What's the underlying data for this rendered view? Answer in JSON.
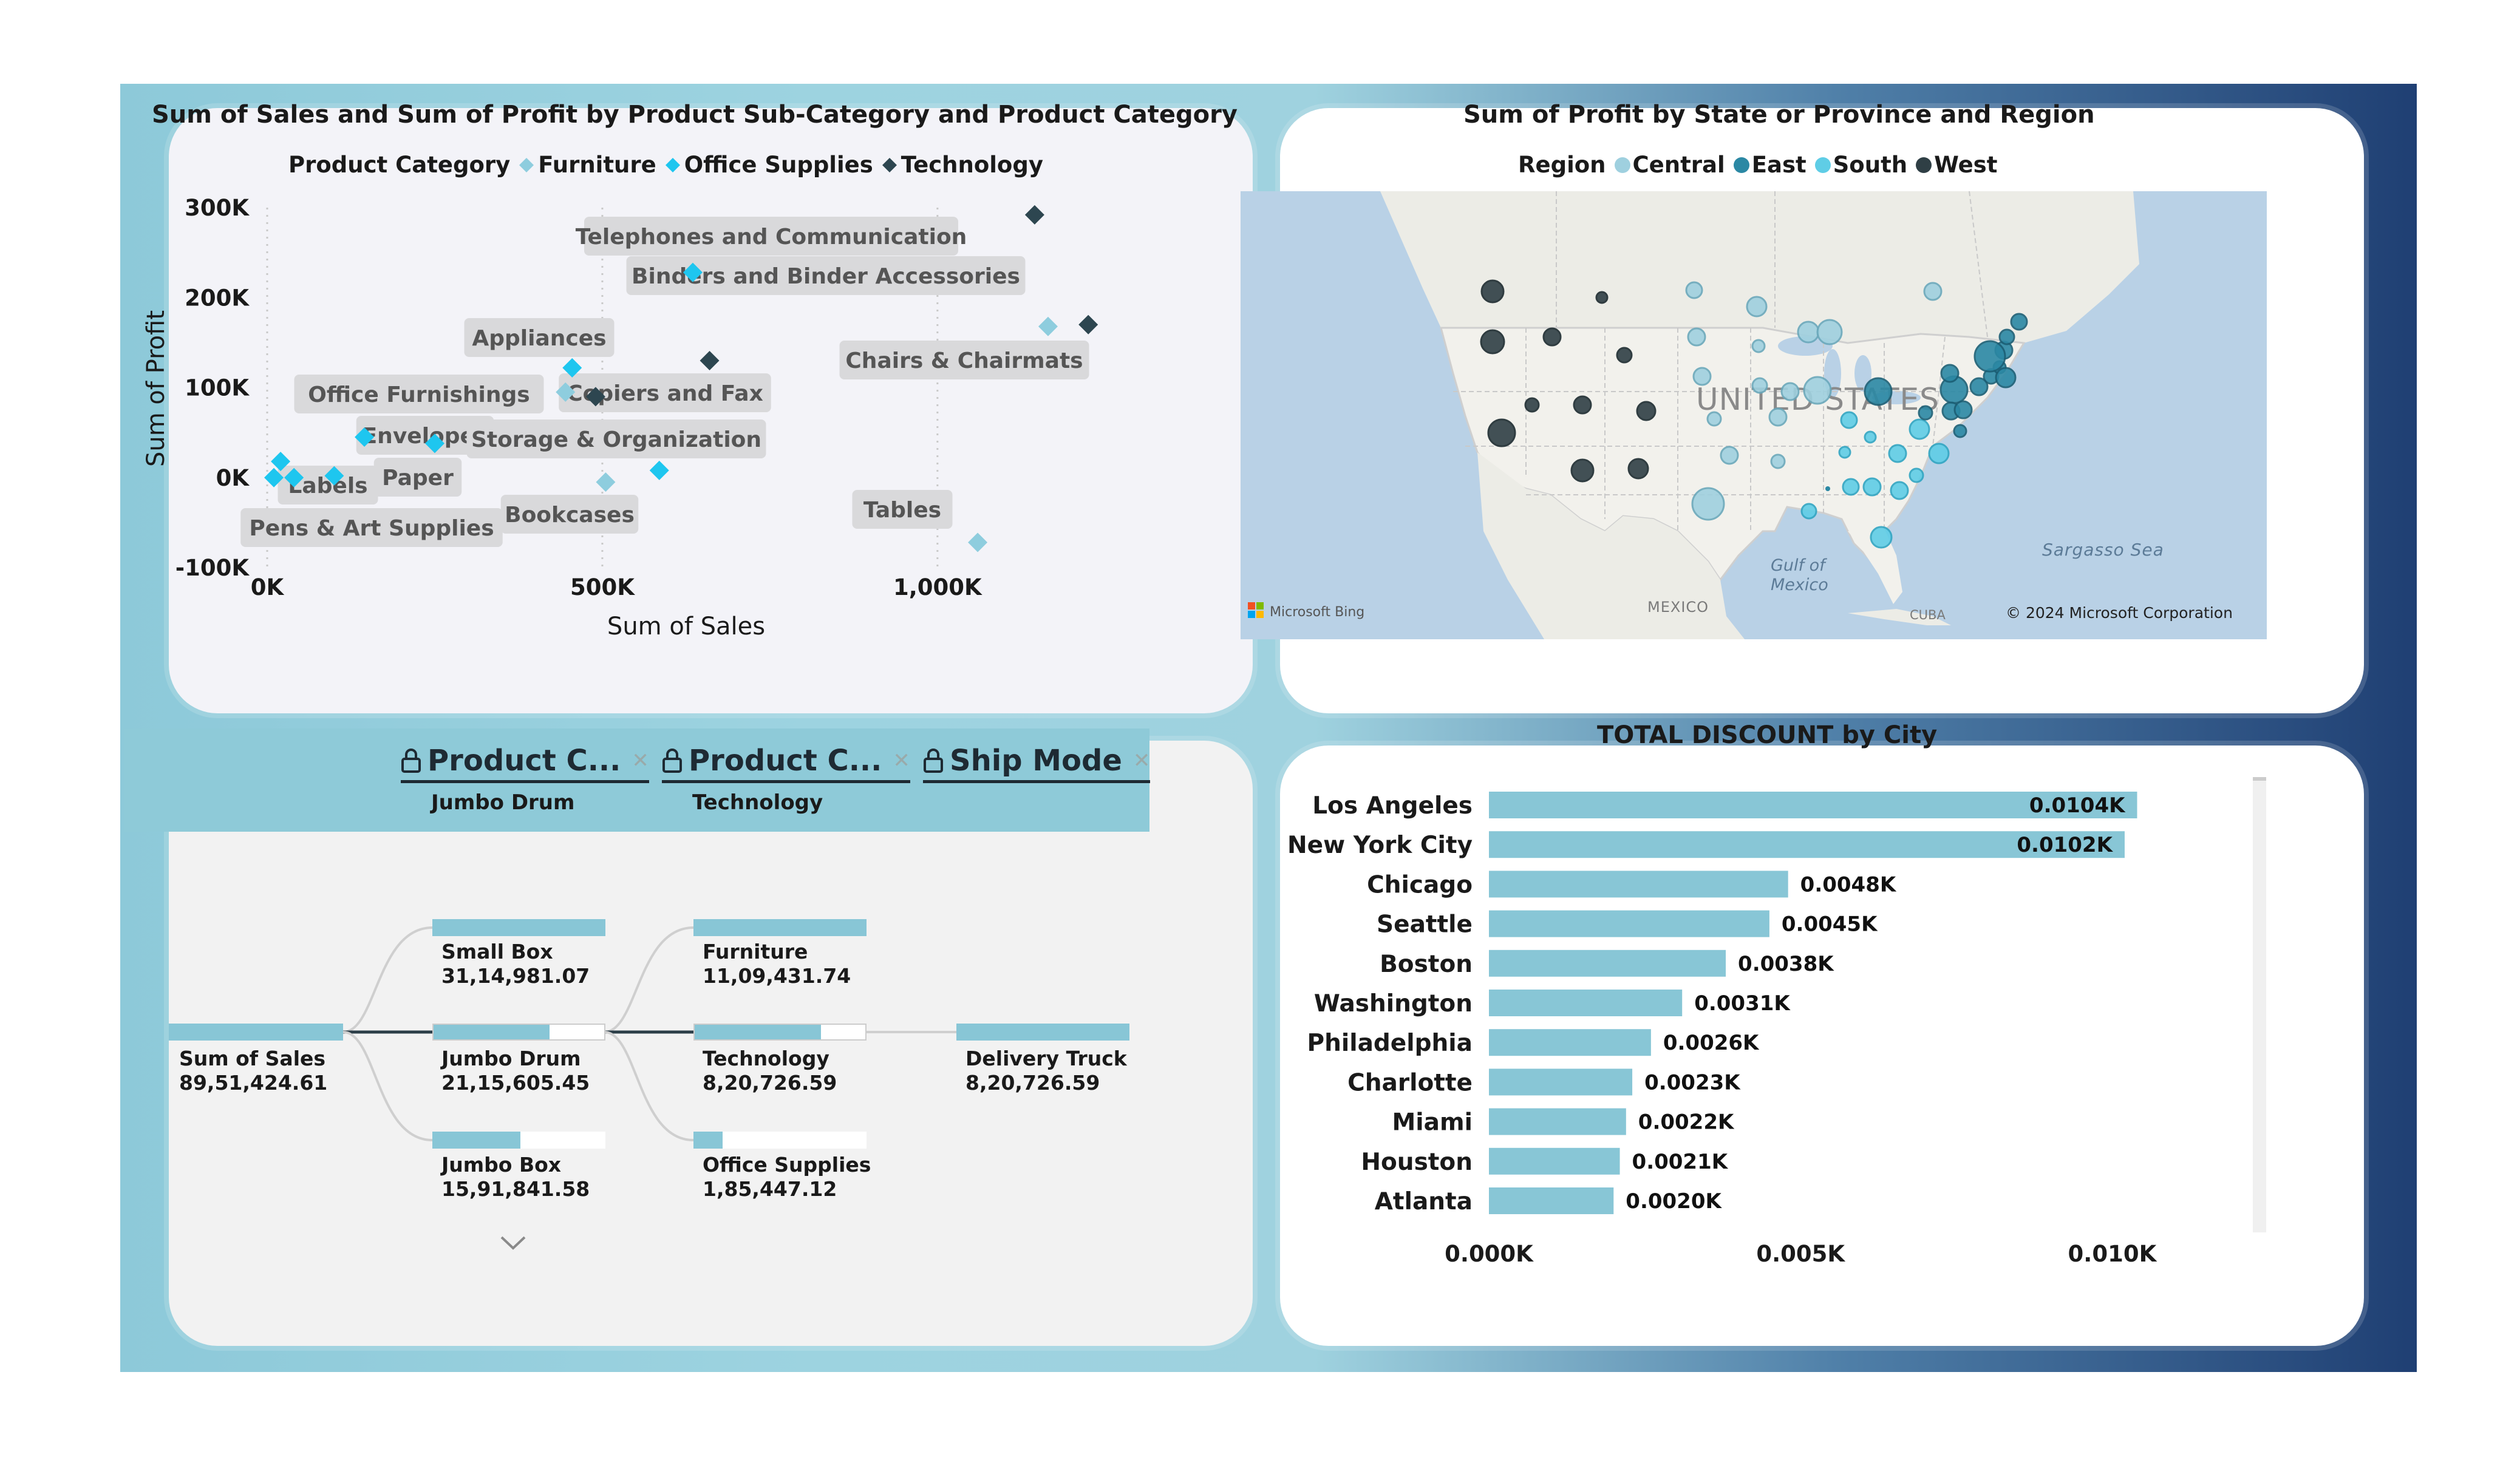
{
  "colors": {
    "furniture": "#8ecdde",
    "office_supplies": "#1ec6ef",
    "technology": "#2d4650",
    "central": "#9fd0df",
    "east": "#2b88a4",
    "south": "#5fcde6",
    "west": "#2f3f45",
    "bar": "#88c6d6"
  },
  "scatter": {
    "title": "Sum of Sales and Sum of Profit by Product Sub-Category and Product Category",
    "legend_title": "Product Category",
    "chart_data": {
      "type": "scatter",
      "xlabel": "Sum of Sales",
      "ylabel": "Sum of Profit",
      "xlim": [
        0,
        1300000
      ],
      "ylim": [
        -100000,
        300000
      ],
      "x_ticks": [
        {
          "v": 0,
          "label": "0K"
        },
        {
          "v": 500000,
          "label": "500K"
        },
        {
          "v": 1000000,
          "label": "1,000K"
        }
      ],
      "y_ticks": [
        {
          "v": 300000,
          "label": "300K"
        },
        {
          "v": 200000,
          "label": "200K"
        },
        {
          "v": 100000,
          "label": "100K"
        },
        {
          "v": 0,
          "label": "0K"
        },
        {
          "v": -100000,
          "label": "-100K"
        }
      ],
      "series": [
        {
          "name": "Furniture",
          "points": [
            {
              "label": "Office Furnishings",
              "x": 445000,
              "y": 95000
            },
            {
              "label": "Bookcases",
              "x": 505000,
              "y": -5000
            },
            {
              "label": "Chairs & Chairmats",
              "x": 1165000,
              "y": 168000
            },
            {
              "label": "Tables",
              "x": 1060000,
              "y": -72000
            }
          ]
        },
        {
          "name": "Office Supplies",
          "points": [
            {
              "label": "Appliances",
              "x": 455000,
              "y": 122000
            },
            {
              "label": "Binders and Binder Accessories",
              "x": 635000,
              "y": 228000
            },
            {
              "label": "Envelopes",
              "x": 145000,
              "y": 45000
            },
            {
              "label": "Storage & Organization",
              "x": 585000,
              "y": 8000
            },
            {
              "label": "Labels",
              "x": 20000,
              "y": 18000
            },
            {
              "label": "Paper",
              "x": 100000,
              "y": 2000
            },
            {
              "label": "Pens & Art Supplies",
              "x": 40000,
              "y": 0
            },
            {
              "label": "",
              "x": 250000,
              "y": 38000
            },
            {
              "label": "",
              "x": 10000,
              "y": 0
            }
          ]
        },
        {
          "name": "Technology",
          "points": [
            {
              "label": "Telephones and Communication",
              "x": 1145000,
              "y": 292000
            },
            {
              "label": "Copiers and Fax",
              "x": 660000,
              "y": 130000
            },
            {
              "label": "",
              "x": 490000,
              "y": 90000
            },
            {
              "label": "",
              "x": 1225000,
              "y": 170000
            }
          ]
        }
      ]
    }
  },
  "map": {
    "title": "Sum of Profit by State or Province and Region",
    "legend_title": "Region",
    "regions": [
      "Central",
      "East",
      "South",
      "West"
    ],
    "labels": {
      "country": "UNITED STATES",
      "gulf1": "Gulf of",
      "gulf2": "Mexico",
      "sea": "Sargasso Sea",
      "mexico": "MEXICO",
      "cuba": "CUBA",
      "bing": "Microsoft Bing",
      "copyright": "© 2024 Microsoft Corporation"
    }
  },
  "slicers": [
    {
      "label": "Product C...",
      "value": "Jumbo Drum"
    },
    {
      "label": "Product C...",
      "value": "Technology"
    },
    {
      "label": "Ship Mode",
      "value": ""
    }
  ],
  "decomp": {
    "root": {
      "label": "Sum of Sales",
      "value": "89,51,424.61"
    },
    "level1": [
      {
        "label": "Small Box",
        "value": "31,14,981.07",
        "fraction": 1.0
      },
      {
        "label": "Jumbo Drum",
        "value": "21,15,605.45",
        "fraction": 0.68
      },
      {
        "label": "Jumbo Box",
        "value": "15,91,841.58",
        "fraction": 0.51
      }
    ],
    "level2": [
      {
        "label": "Furniture",
        "value": "11,09,431.74",
        "fraction": 1.0
      },
      {
        "label": "Technology",
        "value": "8,20,726.59",
        "fraction": 0.74
      },
      {
        "label": "Office Supplies",
        "value": "1,85,447.12",
        "fraction": 0.17
      }
    ],
    "level3": [
      {
        "label": "Delivery Truck",
        "value": "8,20,726.59",
        "fraction": 1.0
      }
    ]
  },
  "bar": {
    "title": "TOTAL DISCOUNT by City",
    "chart_data": {
      "type": "bar",
      "orientation": "horizontal",
      "categories": [
        "Los Angeles",
        "New York City",
        "Chicago",
        "Seattle",
        "Boston",
        "Washington",
        "Philadelphia",
        "Charlotte",
        "Miami",
        "Houston",
        "Atlanta"
      ],
      "values": [
        0.0104,
        0.0102,
        0.0048,
        0.0045,
        0.0038,
        0.0031,
        0.0026,
        0.0023,
        0.0022,
        0.0021,
        0.002
      ],
      "data_labels": [
        "0.0104K",
        "0.0102K",
        "0.0048K",
        "0.0045K",
        "0.0038K",
        "0.0031K",
        "0.0026K",
        "0.0023K",
        "0.0022K",
        "0.0021K",
        "0.0020K"
      ],
      "xlim": [
        0,
        0.0106
      ],
      "x_ticks": [
        {
          "v": 0,
          "label": "0.000K"
        },
        {
          "v": 0.005,
          "label": "0.005K"
        },
        {
          "v": 0.01,
          "label": "0.010K"
        }
      ]
    }
  }
}
